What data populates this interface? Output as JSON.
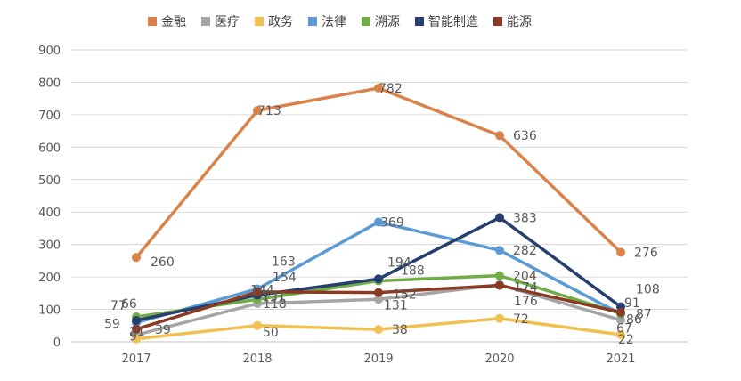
{
  "chart_data": {
    "type": "line",
    "title": "",
    "xlabel": "",
    "ylabel": "",
    "categories": [
      "2017",
      "2018",
      "2019",
      "2020",
      "2021"
    ],
    "ylim": [
      0,
      900
    ],
    "yticks": [
      0,
      100,
      200,
      300,
      400,
      500,
      600,
      700,
      800,
      900
    ],
    "grid": true,
    "legend_position": "top",
    "series": [
      {
        "name": "金融",
        "color": "#d9834a",
        "values": [
          260,
          713,
          782,
          636,
          276
        ]
      },
      {
        "name": "医疗",
        "color": "#a5a5a5",
        "values": [
          21,
          118,
          131,
          176,
          67
        ]
      },
      {
        "name": "政务",
        "color": "#f0c050",
        "values": [
          9,
          50,
          38,
          72,
          22
        ]
      },
      {
        "name": "法律",
        "color": "#5b9bd5",
        "values": [
          59,
          163,
          369,
          282,
          86
        ]
      },
      {
        "name": "溯源",
        "color": "#70ad47",
        "values": [
          77,
          131,
          188,
          204,
          87
        ]
      },
      {
        "name": "智能制造",
        "color": "#263f6f",
        "values": [
          66,
          144,
          194,
          383,
          108
        ]
      },
      {
        "name": "能源",
        "color": "#8b3a24",
        "values": [
          39,
          154,
          152,
          174,
          91
        ]
      }
    ]
  }
}
